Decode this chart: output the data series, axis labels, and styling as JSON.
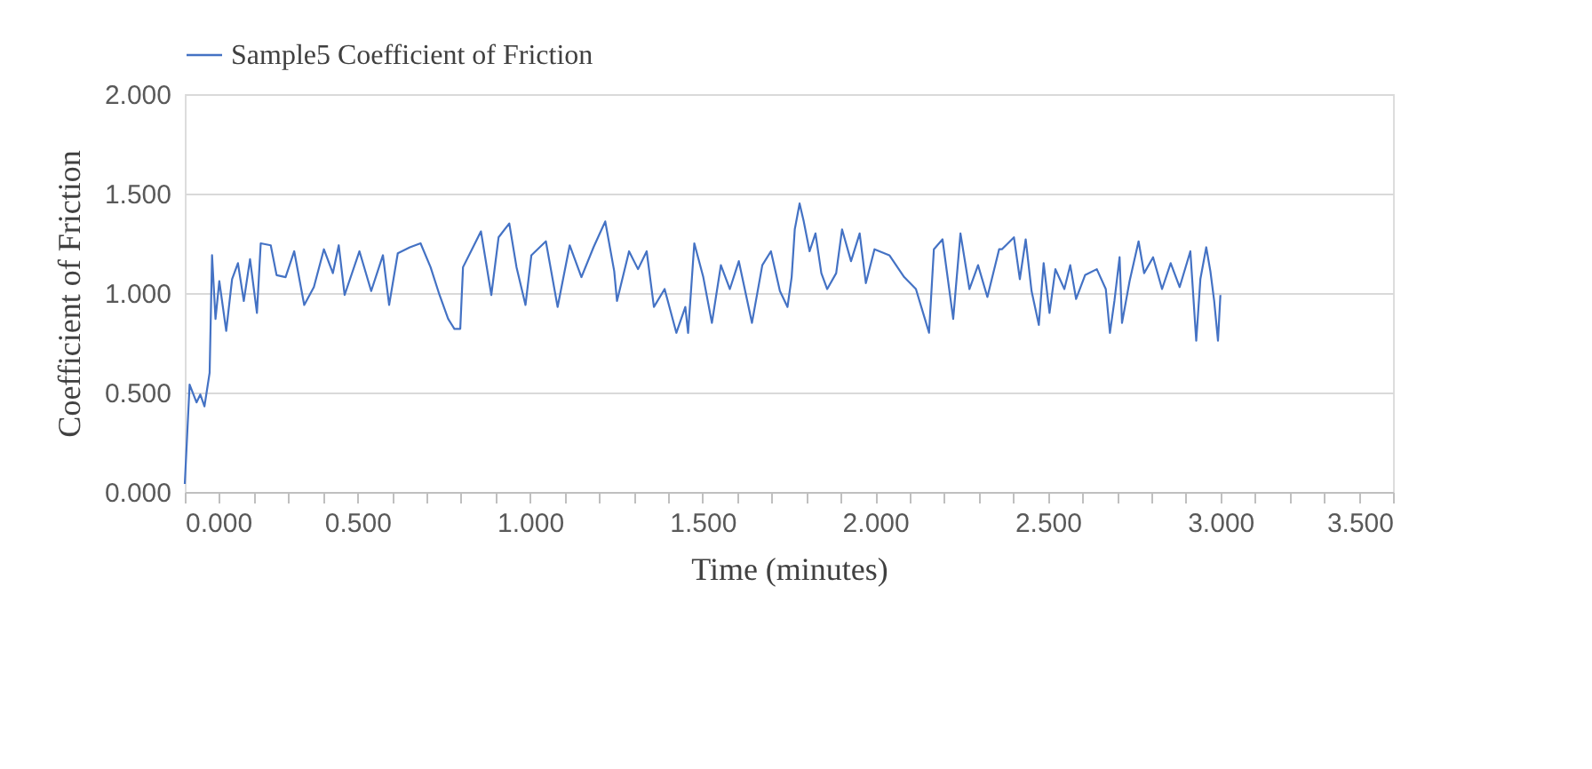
{
  "chart_data": {
    "type": "line",
    "xlabel": "Time (minutes)",
    "ylabel": "Coefficient of Friction",
    "xlim": [
      0,
      3.5
    ],
    "ylim": [
      0,
      2
    ],
    "xticks": [
      {
        "value": 0,
        "label": "0.000"
      },
      {
        "value": 0.1,
        "label": null
      },
      {
        "value": 0.2,
        "label": null
      },
      {
        "value": 0.3,
        "label": null
      },
      {
        "value": 0.4,
        "label": null
      },
      {
        "value": 0.5,
        "label": "0.500"
      },
      {
        "value": 0.6,
        "label": null
      },
      {
        "value": 0.7,
        "label": null
      },
      {
        "value": 0.8,
        "label": null
      },
      {
        "value": 0.9,
        "label": null
      },
      {
        "value": 1,
        "label": "1.000"
      },
      {
        "value": 1.1,
        "label": null
      },
      {
        "value": 1.2,
        "label": null
      },
      {
        "value": 1.3,
        "label": null
      },
      {
        "value": 1.4,
        "label": null
      },
      {
        "value": 1.5,
        "label": "1.500"
      },
      {
        "value": 1.6,
        "label": null
      },
      {
        "value": 1.7,
        "label": null
      },
      {
        "value": 1.8,
        "label": null
      },
      {
        "value": 1.9,
        "label": null
      },
      {
        "value": 2,
        "label": "2.000"
      },
      {
        "value": 2.1,
        "label": null
      },
      {
        "value": 2.2,
        "label": null
      },
      {
        "value": 2.3,
        "label": null
      },
      {
        "value": 2.4,
        "label": null
      },
      {
        "value": 2.5,
        "label": "2.500"
      },
      {
        "value": 2.6,
        "label": null
      },
      {
        "value": 2.7,
        "label": null
      },
      {
        "value": 2.8,
        "label": null
      },
      {
        "value": 2.9,
        "label": null
      },
      {
        "value": 3,
        "label": "3.000"
      },
      {
        "value": 3.1,
        "label": null
      },
      {
        "value": 3.2,
        "label": null
      },
      {
        "value": 3.3,
        "label": null
      },
      {
        "value": 3.4,
        "label": null
      },
      {
        "value": 3.5,
        "label": "3.500"
      }
    ],
    "yticks": [
      {
        "value": 0,
        "label": "0.000"
      },
      {
        "value": 0.5,
        "label": "0.500"
      },
      {
        "value": 1,
        "label": "1.000"
      },
      {
        "value": 1.5,
        "label": "1.500"
      },
      {
        "value": 2,
        "label": "2.000"
      }
    ],
    "grid": "y",
    "legend": "top",
    "marker": "none",
    "line_style": "solid",
    "series": [
      {
        "name": "Sample5  Coefficient of Friction",
        "color": "#4472c4",
        "x": [
          0,
          0.014,
          0.034,
          0.045,
          0.057,
          0.072,
          0.079,
          0.089,
          0.1,
          0.12,
          0.137,
          0.154,
          0.171,
          0.189,
          0.209,
          0.22,
          0.249,
          0.266,
          0.292,
          0.317,
          0.346,
          0.374,
          0.403,
          0.429,
          0.446,
          0.463,
          0.506,
          0.54,
          0.574,
          0.592,
          0.617,
          0.652,
          0.683,
          0.712,
          0.738,
          0.763,
          0.781,
          0.798,
          0.806,
          0.832,
          0.858,
          0.888,
          0.909,
          0.94,
          0.961,
          0.987,
          1.004,
          1.046,
          1.08,
          1.115,
          1.149,
          1.184,
          1.218,
          1.244,
          1.252,
          1.287,
          1.313,
          1.338,
          1.359,
          1.39,
          1.424,
          1.45,
          1.458,
          1.476,
          1.502,
          1.527,
          1.553,
          1.579,
          1.605,
          1.643,
          1.673,
          1.698,
          1.724,
          1.746,
          1.758,
          1.767,
          1.781,
          1.793,
          1.81,
          1.827,
          1.844,
          1.861,
          1.887,
          1.904,
          1.93,
          1.955,
          1.973,
          1.998,
          2.041,
          2.084,
          2.118,
          2.144,
          2.156,
          2.17,
          2.195,
          2.226,
          2.247,
          2.273,
          2.298,
          2.325,
          2.359,
          2.367,
          2.402,
          2.419,
          2.436,
          2.453,
          2.474,
          2.488,
          2.505,
          2.522,
          2.548,
          2.565,
          2.582,
          2.608,
          2.642,
          2.668,
          2.68,
          2.693,
          2.708,
          2.715,
          2.737,
          2.763,
          2.779,
          2.805,
          2.831,
          2.856,
          2.882,
          2.913,
          2.93,
          2.942,
          2.959,
          2.971,
          2.982,
          2.993,
          3.0
        ],
        "values": [
          0.04,
          0.54,
          0.45,
          0.49,
          0.43,
          0.6,
          1.19,
          0.87,
          1.06,
          0.81,
          1.07,
          1.15,
          0.96,
          1.17,
          0.9,
          1.25,
          1.24,
          1.09,
          1.08,
          1.21,
          0.94,
          1.03,
          1.22,
          1.1,
          1.24,
          0.99,
          1.21,
          1.01,
          1.19,
          0.94,
          1.2,
          1.23,
          1.25,
          1.13,
          0.99,
          0.87,
          0.82,
          0.82,
          1.13,
          1.22,
          1.31,
          0.99,
          1.28,
          1.35,
          1.13,
          0.94,
          1.19,
          1.26,
          0.93,
          1.24,
          1.08,
          1.23,
          1.36,
          1.11,
          0.96,
          1.21,
          1.12,
          1.21,
          0.93,
          1.02,
          0.8,
          0.93,
          0.8,
          1.25,
          1.08,
          0.85,
          1.14,
          1.02,
          1.16,
          0.85,
          1.14,
          1.21,
          1.01,
          0.93,
          1.08,
          1.32,
          1.45,
          1.36,
          1.21,
          1.3,
          1.1,
          1.02,
          1.1,
          1.32,
          1.16,
          1.3,
          1.05,
          1.22,
          1.19,
          1.08,
          1.02,
          0.87,
          0.8,
          1.22,
          1.27,
          0.87,
          1.3,
          1.02,
          1.14,
          0.98,
          1.22,
          1.22,
          1.28,
          1.07,
          1.27,
          1.01,
          0.84,
          1.15,
          0.9,
          1.12,
          1.02,
          1.14,
          0.97,
          1.09,
          1.12,
          1.02,
          0.8,
          0.96,
          1.18,
          0.85,
          1.06,
          1.26,
          1.1,
          1.18,
          1.02,
          1.15,
          1.03,
          1.21,
          0.76,
          1.07,
          1.23,
          1.11,
          0.96,
          0.76,
          0.99
        ]
      }
    ]
  }
}
